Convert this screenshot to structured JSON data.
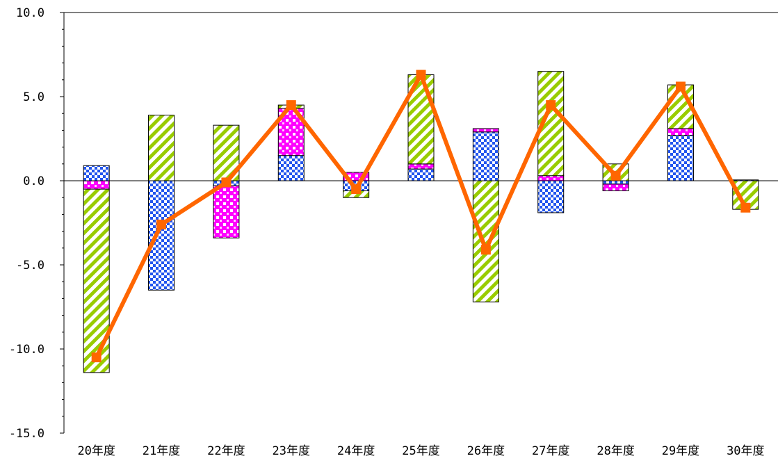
{
  "chart_data": {
    "type": "bar",
    "stacked": true,
    "categories": [
      "20年度",
      "21年度",
      "22年度",
      "23年度",
      "24年度",
      "25年度",
      "26年度",
      "27年度",
      "28年度",
      "29年度",
      "30年度"
    ],
    "ylim": [
      -15,
      10
    ],
    "yticks": [
      -15,
      -10,
      -5,
      0,
      5,
      10
    ],
    "ytick_labels": [
      "-15.0",
      "-10.0",
      "-5.0",
      "0.0",
      "5.0",
      "10.0"
    ],
    "title": "",
    "xlabel": "",
    "ylabel": "",
    "series": [
      {
        "key": "blue",
        "type": "bar",
        "pattern": "checker",
        "color": "#2255ee",
        "values": [
          0.9,
          -6.5,
          -0.3,
          1.5,
          -0.6,
          0.7,
          2.9,
          -1.9,
          -0.2,
          2.7,
          0.05
        ]
      },
      {
        "key": "pink",
        "type": "bar",
        "pattern": "checker",
        "color": "#ff00ff",
        "values": [
          -0.5,
          0.0,
          -3.1,
          2.8,
          0.5,
          0.3,
          0.2,
          0.3,
          -0.4,
          0.4,
          0.0
        ]
      },
      {
        "key": "green",
        "type": "bar",
        "pattern": "diagonal",
        "color": "#99cc00",
        "values": [
          -10.9,
          3.9,
          3.3,
          0.2,
          -0.4,
          5.3,
          -7.2,
          6.2,
          1.0,
          2.6,
          -1.7
        ]
      },
      {
        "key": "total",
        "type": "line",
        "color": "#ff6600",
        "values": [
          -10.5,
          -2.6,
          -0.1,
          4.5,
          -0.5,
          6.3,
          -4.1,
          4.5,
          0.3,
          5.6,
          -1.6
        ]
      }
    ]
  }
}
